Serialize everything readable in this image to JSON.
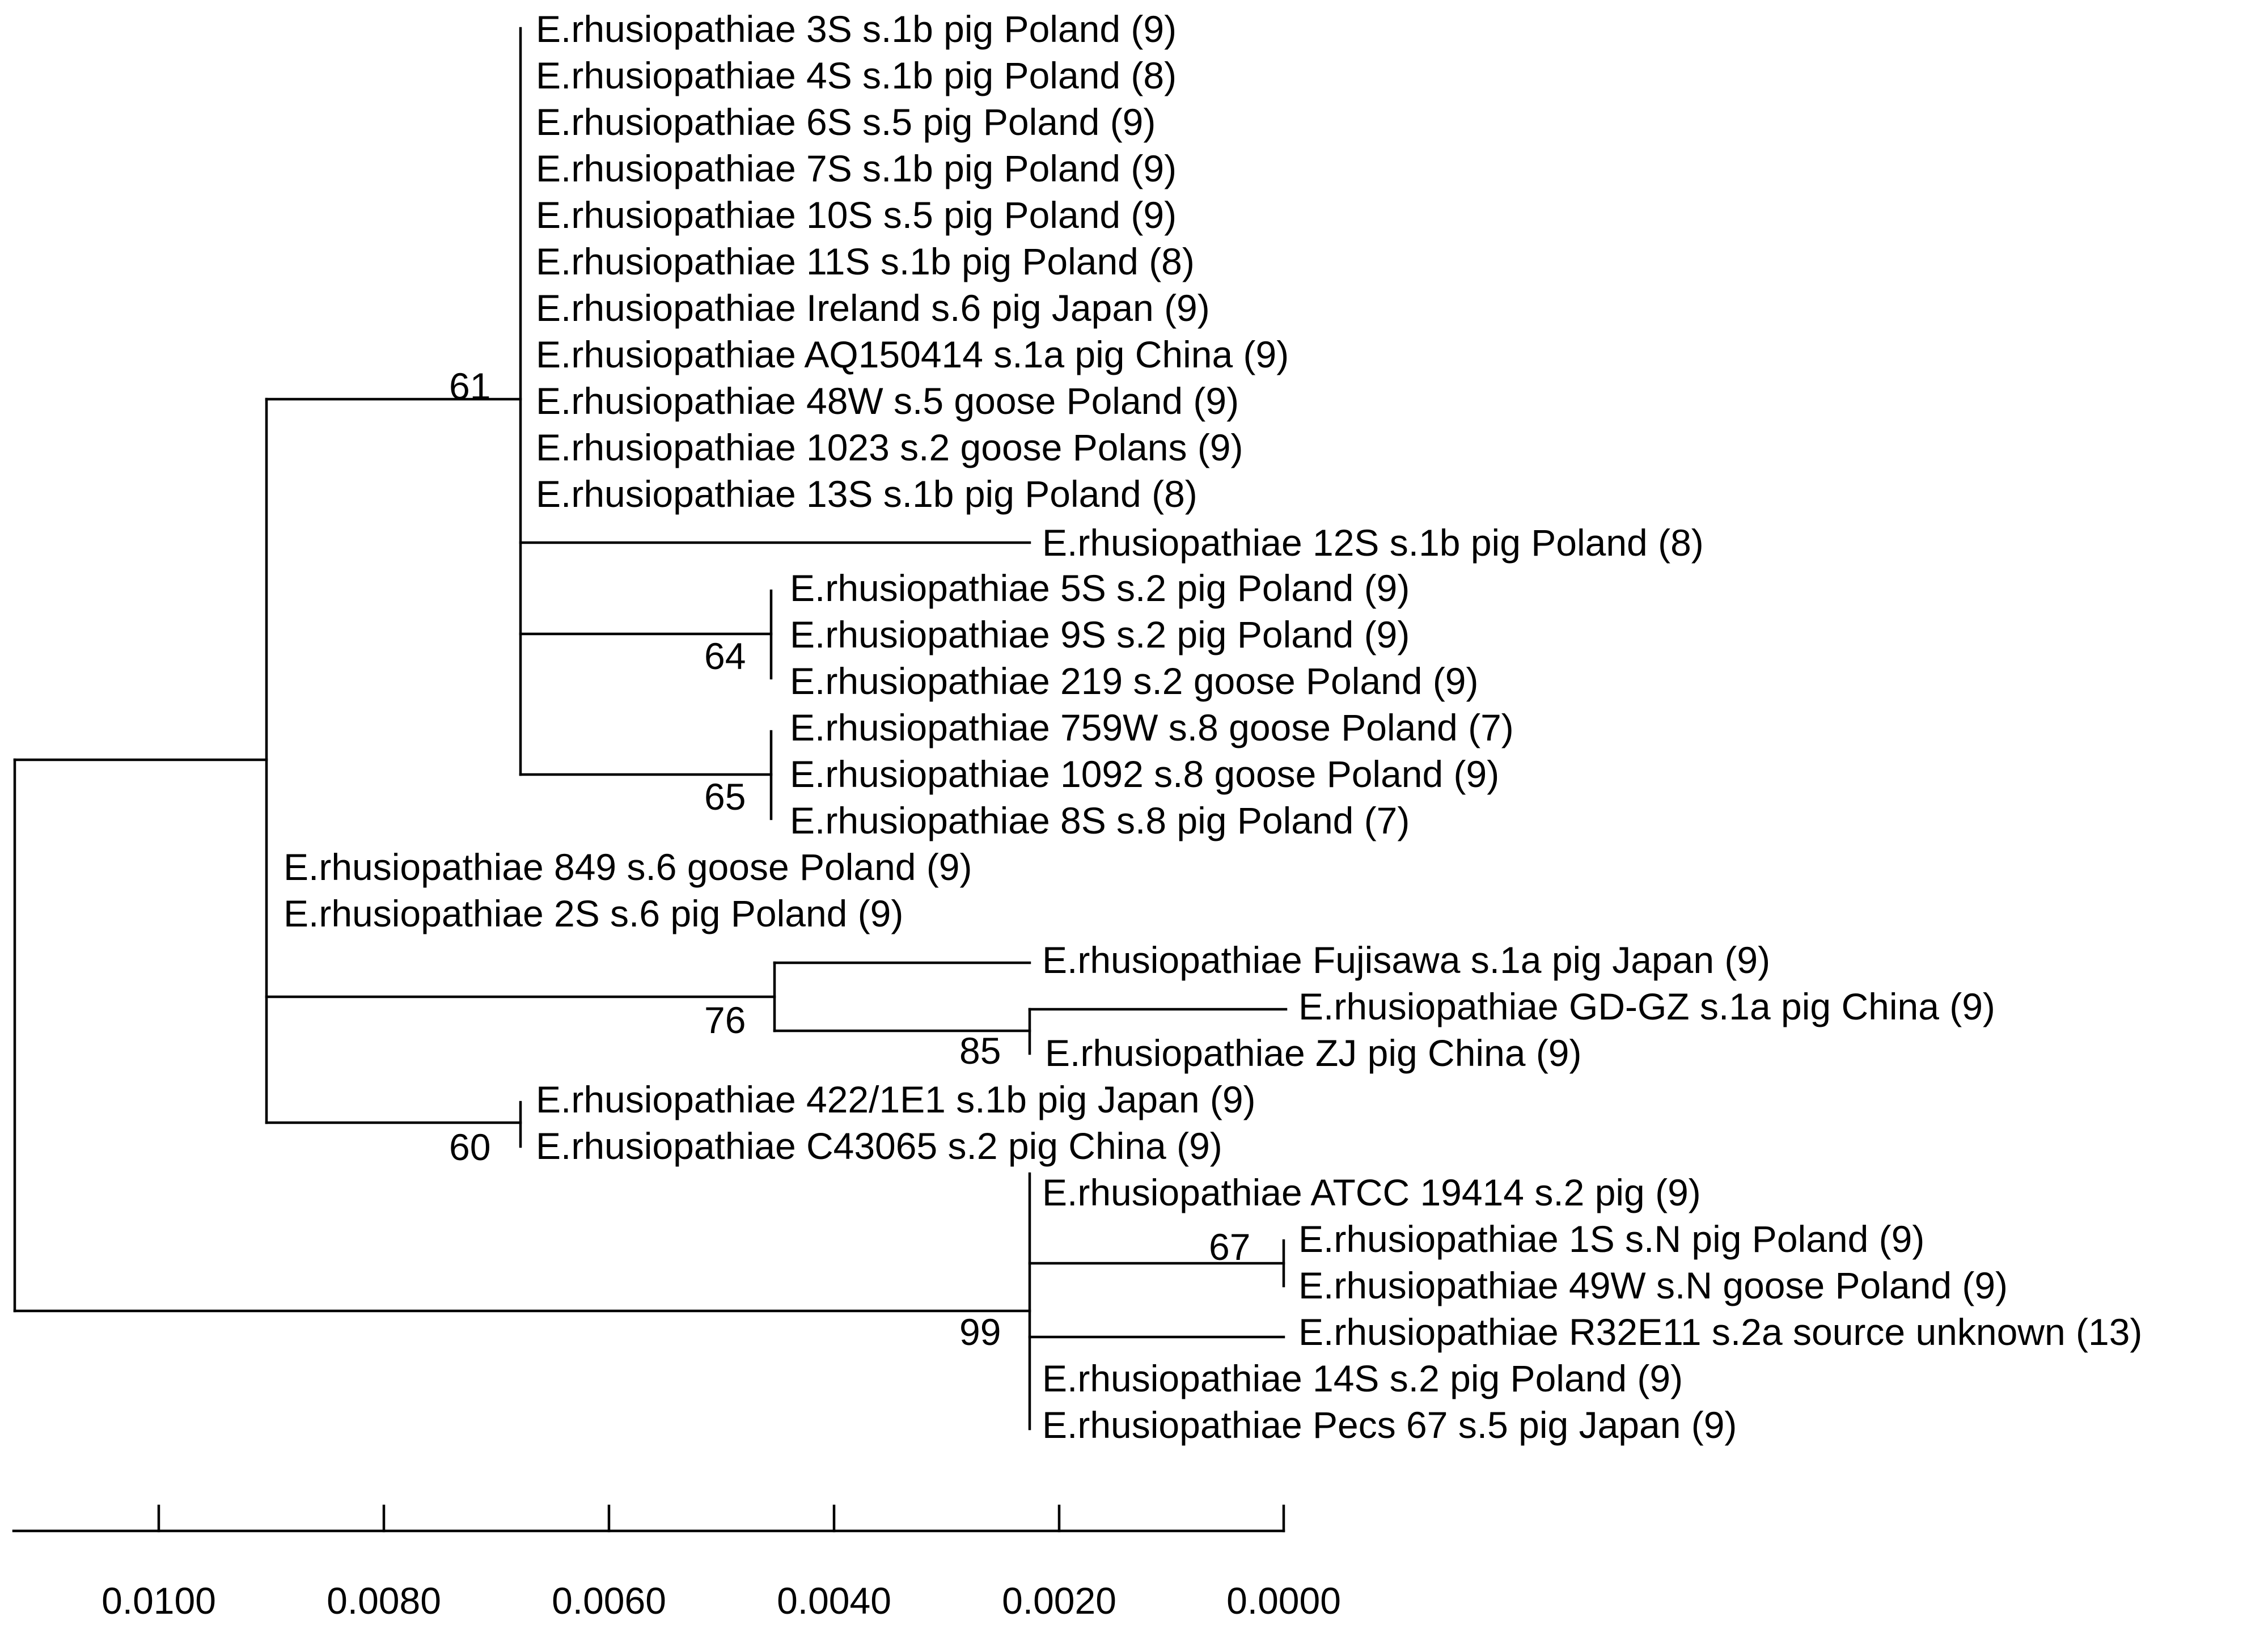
{
  "figure": {
    "type": "phylogenetic-tree",
    "line_color": "#000000",
    "text_color": "#000000",
    "background": "#ffffff"
  },
  "taxa": [
    "E.rhusiopathiae 3S s.1b pig Poland (9)",
    "E.rhusiopathiae 4S s.1b pig Poland (8)",
    "E.rhusiopathiae 6S s.5 pig Poland (9)",
    "E.rhusiopathiae 7S s.1b pig Poland (9)",
    "E.rhusiopathiae 10S s.5 pig Poland (9)",
    "E.rhusiopathiae 11S s.1b pig Poland (8)",
    "E.rhusiopathiae Ireland s.6 pig Japan (9)",
    "E.rhusiopathiae AQ150414 s.1a pig China (9)",
    "E.rhusiopathiae 48W s.5 goose Poland (9)",
    "E.rhusiopathiae 1023 s.2 goose Polans (9)",
    "E.rhusiopathiae 13S s.1b pig Poland (8)",
    "E.rhusiopathiae 12S s.1b pig Poland (8)",
    "E.rhusiopathiae 5S s.2 pig Poland (9)",
    "E.rhusiopathiae 9S s.2 pig Poland (9)",
    "E.rhusiopathiae 219 s.2 goose Poland (9)",
    "E.rhusiopathiae 759W s.8 goose Poland (7)",
    "E.rhusiopathiae 1092 s.8 goose Poland (9)",
    "E.rhusiopathiae 8S s.8 pig Poland (7)",
    "E.rhusiopathiae 849 s.6 goose Poland (9)",
    "E.rhusiopathiae 2S s.6 pig Poland (9)",
    "E.rhusiopathiae Fujisawa s.1a pig Japan (9)",
    "E.rhusiopathiae GD-GZ s.1a pig China (9)",
    "E.rhusiopathiae ZJ pig China (9)",
    "E.rhusiopathiae 422/1E1 s.1b pig Japan (9)",
    "E.rhusiopathiae C43065 s.2 pig China (9)",
    "E.rhusiopathiae ATCC 19414 s.2 pig (9)",
    "E.rhusiopathiae 1S s.N pig Poland (9)",
    "E.rhusiopathiae 49W s.N goose Poland (9)",
    "E.rhusiopathiae R32E11 s.2a source unknown (13)",
    "E.rhusiopathiae 14S s.2 pig Poland (9)",
    "E.rhusiopathiae Pecs 67 s.5 pig Japan (9)"
  ],
  "bootstrap": {
    "clade_main": "61",
    "clade_5S_219": "64",
    "clade_759W_8S": "65",
    "clade_fujisawa": "76",
    "clade_gdgz_zj": "85",
    "clade_422_c43065": "60",
    "clade_1S_49W": "67",
    "clade_atcc": "99"
  },
  "scale_axis": {
    "ticks": [
      "0.0100",
      "0.0080",
      "0.0060",
      "0.0040",
      "0.0020",
      "0.0000"
    ]
  }
}
